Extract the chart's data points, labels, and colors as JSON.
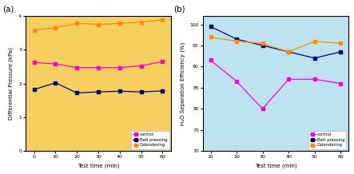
{
  "panel_a": {
    "bg_color": "#F5D060",
    "x": [
      0,
      10,
      20,
      30,
      40,
      50,
      60
    ],
    "control": [
      2.62,
      2.58,
      2.47,
      2.47,
      2.47,
      2.52,
      2.65
    ],
    "belt_pressing": [
      1.82,
      2.02,
      1.72,
      1.75,
      1.77,
      1.75,
      1.78
    ],
    "calendering": [
      3.58,
      3.65,
      3.78,
      3.75,
      3.78,
      3.82,
      3.88
    ],
    "ylabel": "Differential Pressure (kPa)",
    "xlabel": "Test time (min)",
    "ylim": [
      0,
      4
    ],
    "yticks": [
      0,
      1,
      2,
      3,
      4
    ],
    "xticks": [
      0,
      10,
      20,
      30,
      40,
      50,
      60
    ],
    "xlim": [
      -4,
      64
    ],
    "label": "(a)"
  },
  "panel_b": {
    "bg_color": "#BDE3F0",
    "x": [
      10,
      20,
      30,
      40,
      50,
      60
    ],
    "control": [
      91.5,
      86.5,
      80.0,
      87.0,
      87.0,
      86.0
    ],
    "belt_pressing": [
      99.5,
      96.5,
      95.0,
      93.5,
      92.0,
      93.5
    ],
    "calendering": [
      97.0,
      96.0,
      95.5,
      93.5,
      96.0,
      95.5
    ],
    "ylabel": "H₂O Separation Efficiency (%)",
    "xlabel": "Test time (min)",
    "ylim": [
      70,
      102
    ],
    "yticks": [
      70,
      75,
      80,
      85,
      90,
      95,
      100
    ],
    "xticks": [
      10,
      20,
      30,
      40,
      50,
      60
    ],
    "xlim": [
      7,
      63
    ],
    "label": "(b)"
  },
  "colors": {
    "control": "#FF00CC",
    "belt_pressing": "#000080",
    "calendering": "#FF8C00"
  },
  "fig_width": 4.43,
  "fig_height": 2.18,
  "dpi": 100
}
